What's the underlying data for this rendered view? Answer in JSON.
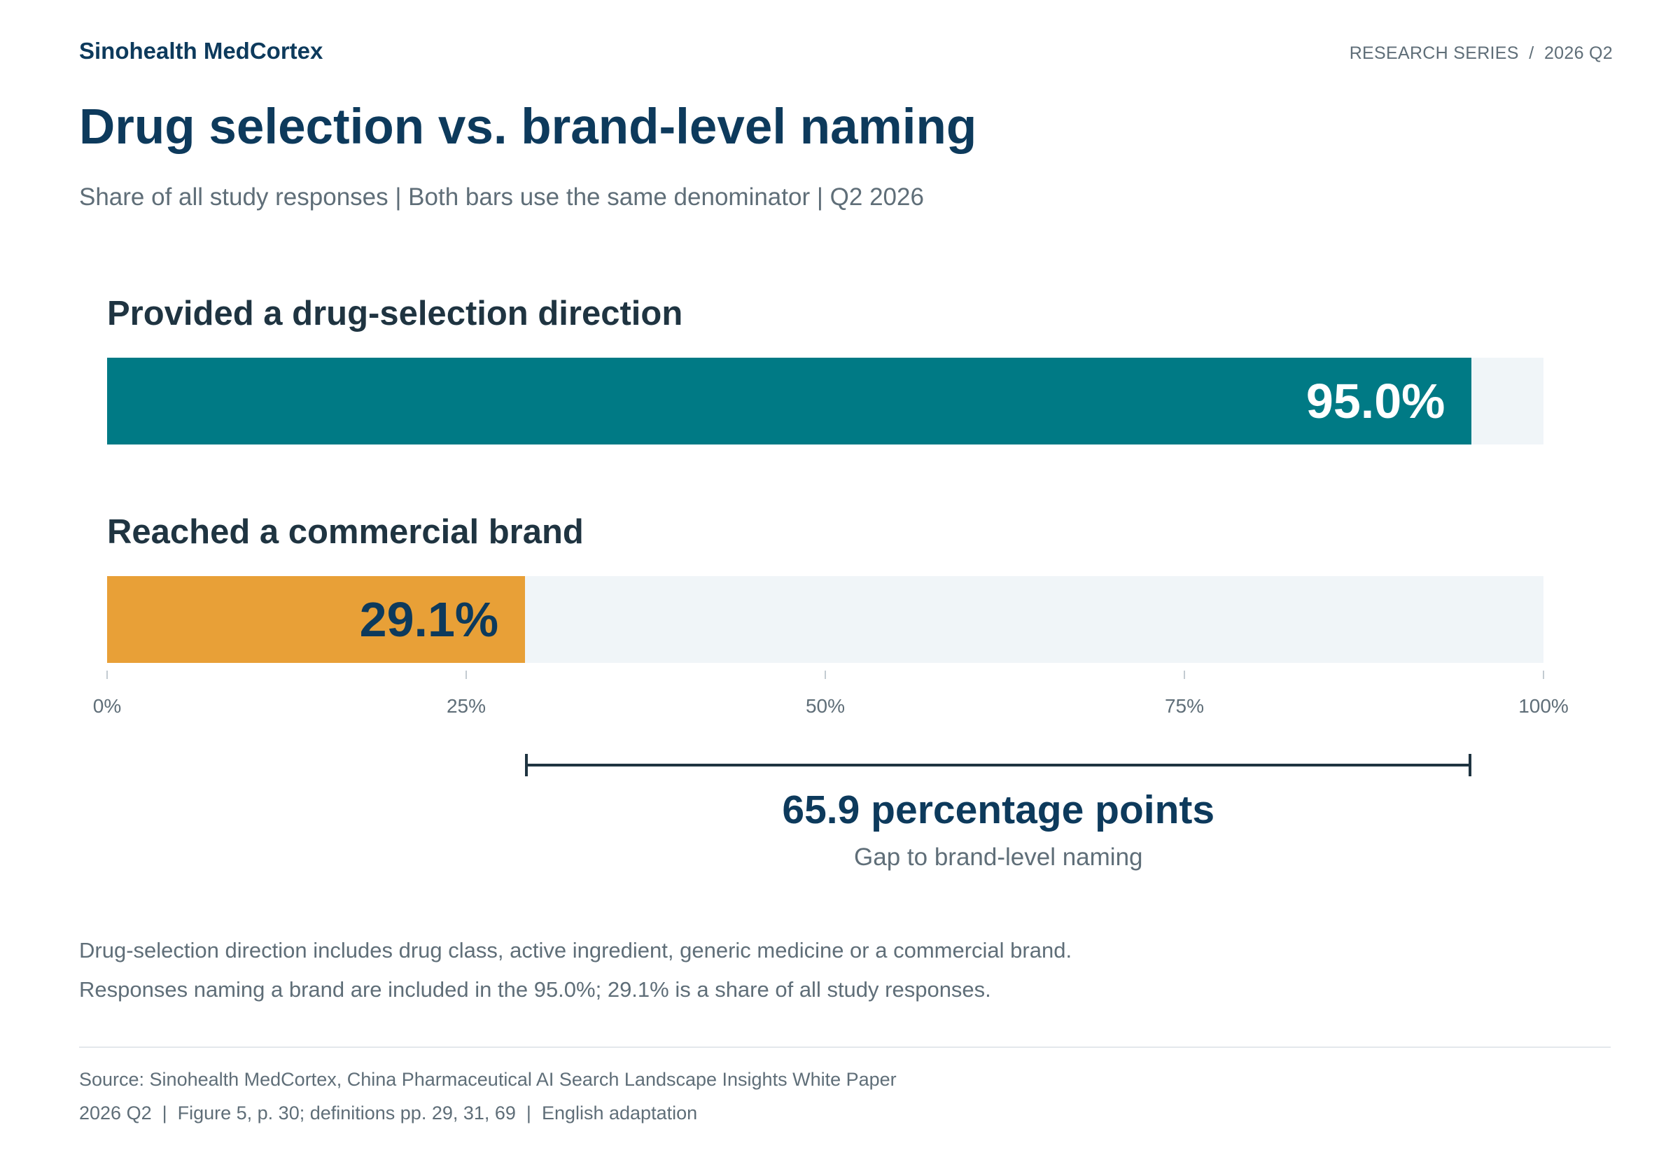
{
  "header": {
    "brand": "Sinohealth MedCortex",
    "series_label": "RESEARCH SERIES  /  2026 Q2"
  },
  "chart_data": {
    "type": "bar",
    "orientation": "horizontal",
    "title": "Drug selection vs. brand-level naming",
    "subtitle": "Share of all study responses | Both bars use the same denominator | Q2 2026",
    "categories": [
      "Provided a drug-selection direction",
      "Reached a commercial brand"
    ],
    "values": [
      95.0,
      29.1
    ],
    "value_labels": [
      "95.0%",
      "29.1%"
    ],
    "colors": [
      "#007a85",
      "#e8a037"
    ],
    "track_color": "#f0f5f8",
    "xlim": [
      0,
      100
    ],
    "x_ticks": [
      0,
      25,
      50,
      75,
      100
    ],
    "x_tick_labels": [
      "0%",
      "25%",
      "50%",
      "75%",
      "100%"
    ],
    "grid": false,
    "annotation": {
      "from": 29.1,
      "to": 95.0,
      "value": "65.9 percentage points",
      "caption": "Gap to brand-level naming"
    }
  },
  "notes": [
    "Drug-selection direction includes drug class, active ingredient, generic medicine or a commercial brand.",
    "Responses naming a brand are included in the 95.0%; 29.1% is a share of all study responses."
  ],
  "source": [
    "Source: Sinohealth MedCortex, China Pharmaceutical AI Search Landscape Insights White Paper",
    "2026 Q2  |  Figure 5, p. 30; definitions pp. 29, 31, 69  |  English adaptation"
  ]
}
